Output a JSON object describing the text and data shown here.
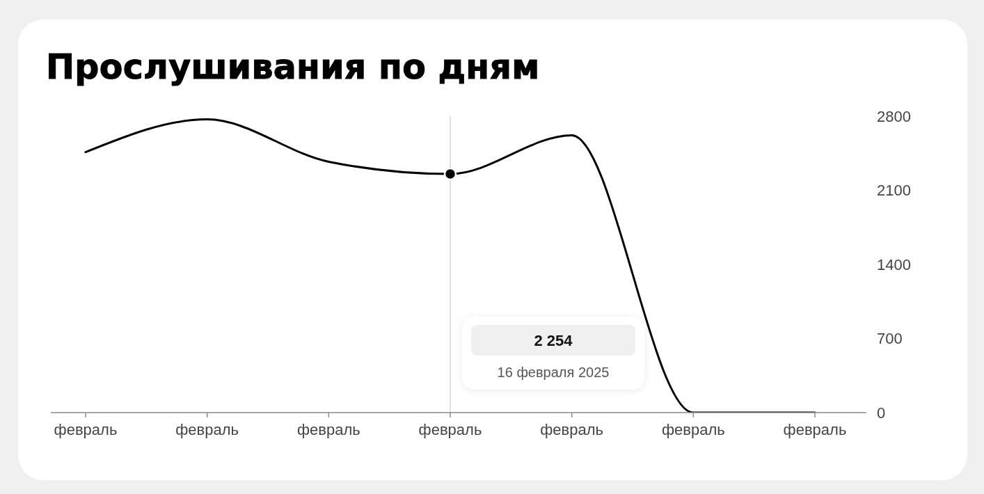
{
  "chart_data": {
    "type": "line",
    "title": "Прослушивания по дням",
    "categories": [
      "февраль",
      "февраль",
      "февраль",
      "февраль",
      "февраль",
      "февраль",
      "февраль"
    ],
    "series": [
      {
        "color": "#000000",
        "values": [
          2460,
          2770,
          2370,
          2254,
          2620,
          0,
          0
        ]
      },
      {
        "type": "scatter",
        "color": "#000000",
        "values": [
          null,
          null,
          null,
          2254,
          null,
          null,
          null
        ]
      }
    ],
    "ylim": [
      0,
      2800
    ],
    "yticks": [
      0,
      700,
      1400,
      2100,
      2800
    ],
    "annotations": [
      "2 254",
      "16 февраля 2025"
    ]
  }
}
